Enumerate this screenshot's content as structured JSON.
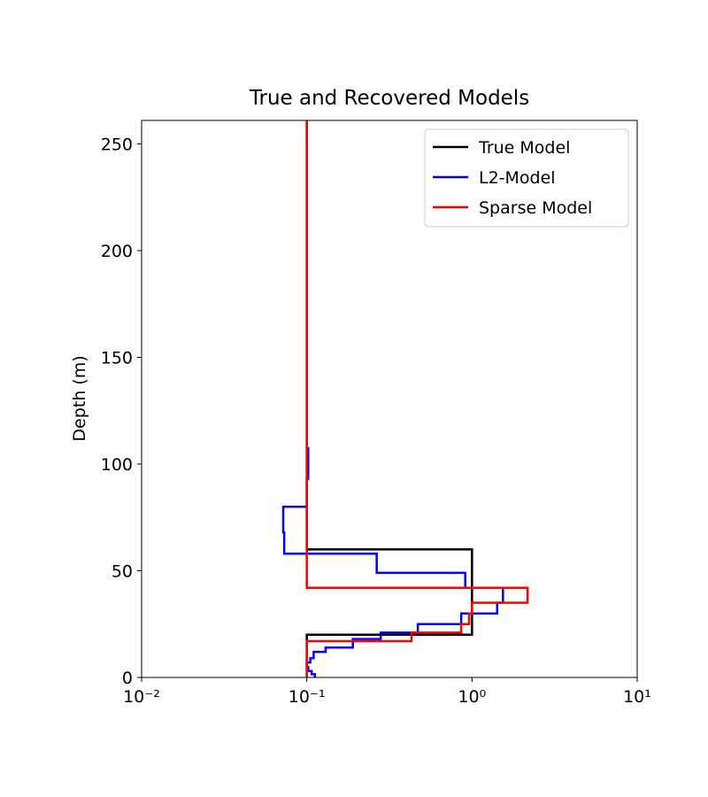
{
  "chart_data": {
    "type": "line",
    "title": "True and Recovered Models",
    "ylabel": "Depth (m)",
    "xscale": "log",
    "xlim": [
      0.01,
      10
    ],
    "ylim": [
      0,
      261
    ],
    "xticks": [
      {
        "value": 0.01,
        "label": "10⁻²"
      },
      {
        "value": 0.1,
        "label": "10⁻¹"
      },
      {
        "value": 1,
        "label": "10⁰"
      },
      {
        "value": 10,
        "label": "10¹"
      }
    ],
    "yticks": [
      0,
      50,
      100,
      150,
      200,
      250
    ],
    "legend": "upper right",
    "series": [
      {
        "name": "True Model",
        "color": "#000000",
        "x": [
          0.1,
          0.1,
          1,
          1,
          0.1,
          0.1
        ],
        "y": [
          261,
          60,
          60,
          20,
          20,
          0
        ]
      },
      {
        "name": "L2-Model",
        "color": "#0000ff",
        "x": [
          0.102,
          0.102,
          0.1,
          0.1,
          0.072,
          0.072,
          0.073,
          0.073,
          0.265,
          0.265,
          0.91,
          0.91,
          1.54,
          1.54,
          1.42,
          1.42,
          0.86,
          0.86,
          0.47,
          0.47,
          0.28,
          0.28,
          0.19,
          0.19,
          0.13,
          0.13,
          0.11,
          0.11,
          0.105,
          0.105,
          0.1,
          0.1,
          0.102,
          0.102,
          0.107,
          0.107,
          0.112,
          0.112
        ],
        "y": [
          108,
          93,
          93,
          80,
          80,
          68,
          68,
          58,
          58,
          49,
          49,
          42,
          42,
          35,
          35,
          30,
          30,
          25,
          25,
          21,
          21,
          18,
          18,
          14,
          14,
          12,
          12,
          9,
          9,
          7,
          7,
          5,
          5,
          3,
          3,
          1.5,
          1.5,
          0
        ]
      },
      {
        "name": "Sparse Model",
        "color": "#ff0000",
        "x": [
          0.1,
          0.1,
          2.17,
          2.17,
          1.0,
          1.0,
          0.96,
          0.96,
          0.86,
          0.86,
          0.43,
          0.43,
          0.1,
          0.1
        ],
        "y": [
          261,
          42,
          42,
          35,
          35,
          30,
          30,
          25,
          25,
          21,
          21,
          17,
          17,
          0
        ]
      }
    ]
  }
}
